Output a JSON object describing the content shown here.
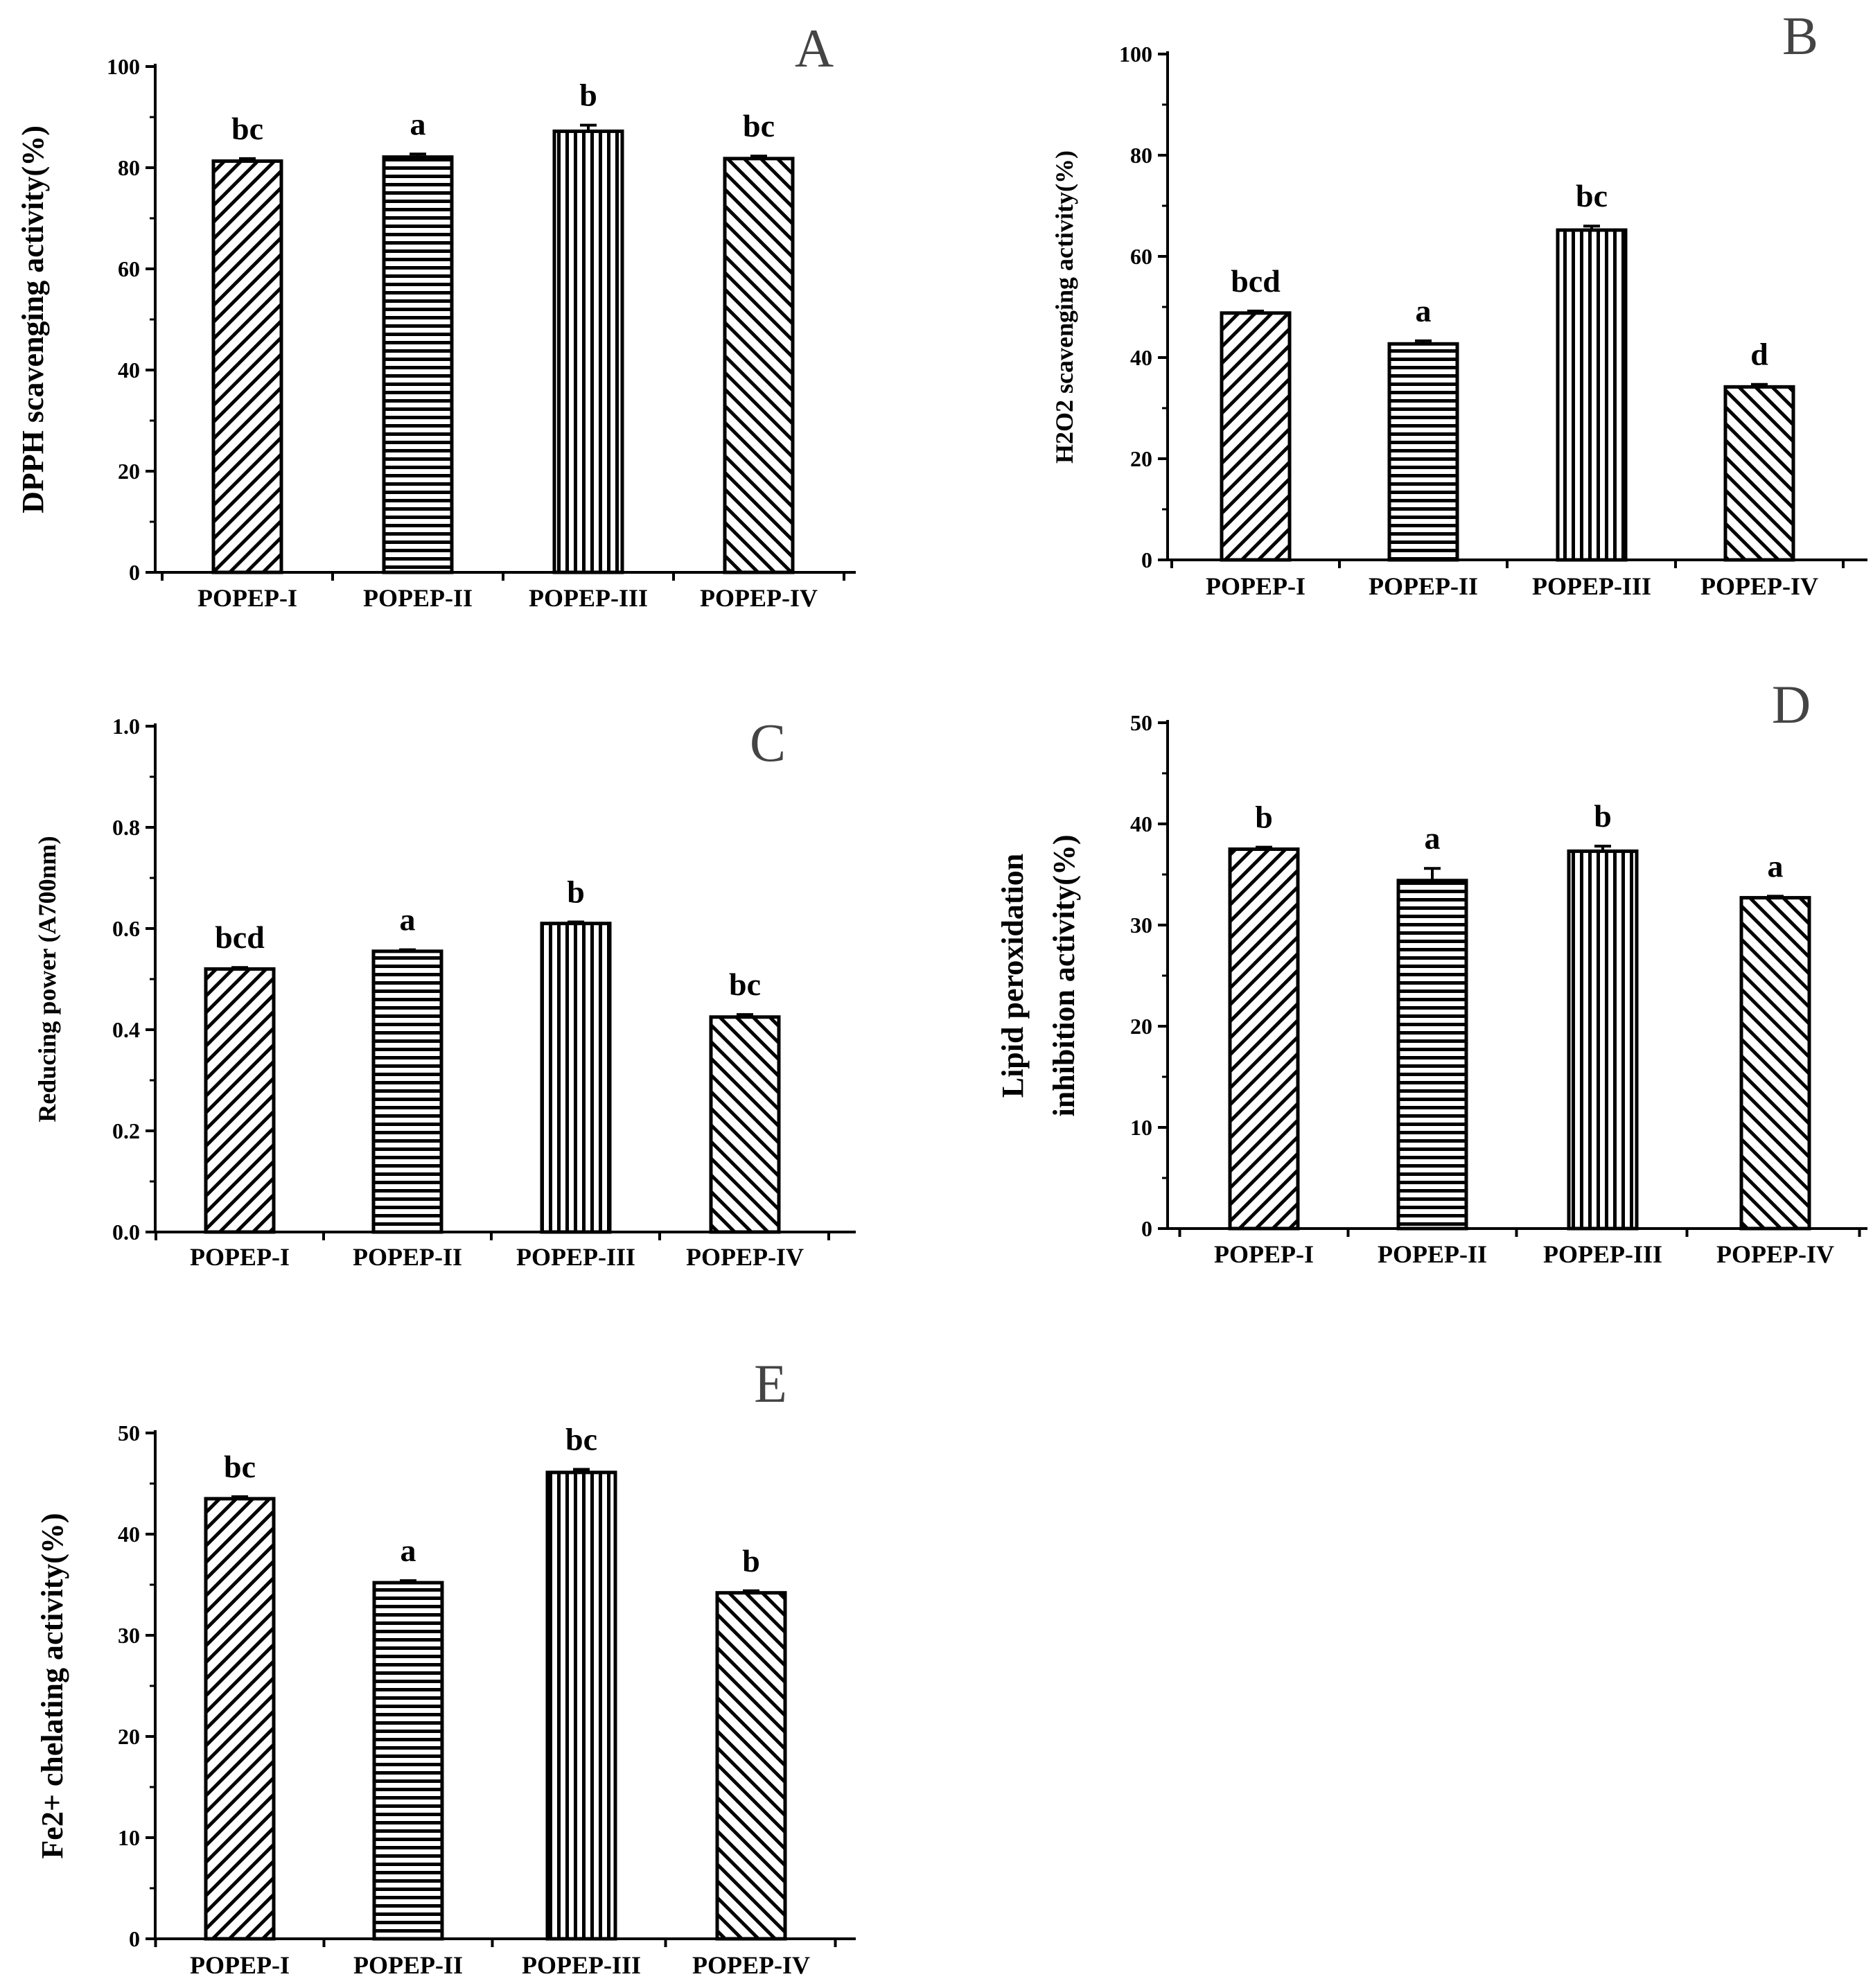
{
  "chart_data": [
    {
      "type": "bar",
      "panel": "A",
      "categories": [
        "POPEP-I",
        "POPEP-II",
        "POPEP-III",
        "POPEP-IV"
      ],
      "values": [
        81.3,
        82.1,
        87.2,
        81.8
      ],
      "errors": [
        0.5,
        0.6,
        1.2,
        0.5
      ],
      "significance": [
        "bc",
        "a",
        "b",
        "bc"
      ],
      "patterns": [
        "diag-fwd",
        "horiz",
        "vert",
        "diag-back"
      ],
      "ylabel": "DPPH scavenging activity(%)",
      "ylim": [
        0,
        100
      ],
      "yticks": [
        0,
        20,
        40,
        60,
        80,
        100
      ],
      "ytick_labels": [
        "0",
        "20",
        "40",
        "60",
        "80",
        "100"
      ]
    },
    {
      "type": "bar",
      "panel": "B",
      "categories": [
        "POPEP-I",
        "POPEP-II",
        "POPEP-III",
        "POPEP-IV"
      ],
      "values": [
        48.8,
        42.7,
        65.2,
        34.2
      ],
      "errors": [
        0.4,
        0.6,
        0.8,
        0.5
      ],
      "significance": [
        "bcd",
        "a",
        "bc",
        "d"
      ],
      "patterns": [
        "diag-fwd",
        "horiz",
        "vert",
        "diag-back"
      ],
      "ylabel": "H2O2 scavenging activity(%)",
      "ylim": [
        0,
        100
      ],
      "yticks": [
        0,
        20,
        40,
        60,
        80,
        100
      ],
      "ytick_labels": [
        "0",
        "20",
        "40",
        "60",
        "80",
        "100"
      ]
    },
    {
      "type": "bar",
      "panel": "C",
      "categories": [
        "POPEP-I",
        "POPEP-II",
        "POPEP-III",
        "POPEP-IV"
      ],
      "values": [
        0.52,
        0.555,
        0.61,
        0.425
      ],
      "errors": [
        0.003,
        0.003,
        0.003,
        0.005
      ],
      "significance": [
        "bcd",
        "a",
        "b",
        "bc"
      ],
      "patterns": [
        "diag-fwd",
        "horiz",
        "vert",
        "diag-back"
      ],
      "ylabel": "Reducing power (A700nm)",
      "ylim": [
        0,
        1.0
      ],
      "yticks": [
        0,
        0.2,
        0.4,
        0.6,
        0.8,
        1.0
      ],
      "ytick_labels": [
        "0.0",
        "0.2",
        "0.4",
        "0.6",
        "0.8",
        "1.0"
      ]
    },
    {
      "type": "bar",
      "panel": "D",
      "categories": [
        "POPEP-I",
        "POPEP-II",
        "POPEP-III",
        "POPEP-IV"
      ],
      "values": [
        37.5,
        34.4,
        37.3,
        32.7
      ],
      "errors": [
        0.2,
        1.2,
        0.5,
        0.15
      ],
      "significance": [
        "b",
        "a",
        "b",
        "a"
      ],
      "patterns": [
        "diag-fwd",
        "horiz",
        "vert",
        "diag-back"
      ],
      "ylabel": "Lipid peroxidation",
      "ylabel_line2": "inhibition activity(%)",
      "ylim": [
        0,
        50
      ],
      "yticks": [
        0,
        10,
        20,
        30,
        40,
        50
      ],
      "ytick_labels": [
        "0",
        "10",
        "20",
        "30",
        "40",
        "50"
      ]
    },
    {
      "type": "bar",
      "panel": "E",
      "categories": [
        "POPEP-I",
        "POPEP-II",
        "POPEP-III",
        "POPEP-IV"
      ],
      "values": [
        43.5,
        35.2,
        46.1,
        34.2
      ],
      "errors": [
        0.2,
        0.2,
        0.3,
        0.2
      ],
      "significance": [
        "bc",
        "a",
        "bc",
        "b"
      ],
      "patterns": [
        "diag-fwd",
        "horiz",
        "vert",
        "diag-back"
      ],
      "ylabel": "Fe2+ chelating activity(%)",
      "ylim": [
        0,
        50
      ],
      "yticks": [
        0,
        10,
        20,
        30,
        40,
        50
      ],
      "ytick_labels": [
        "0",
        "10",
        "20",
        "30",
        "40",
        "50"
      ]
    }
  ]
}
